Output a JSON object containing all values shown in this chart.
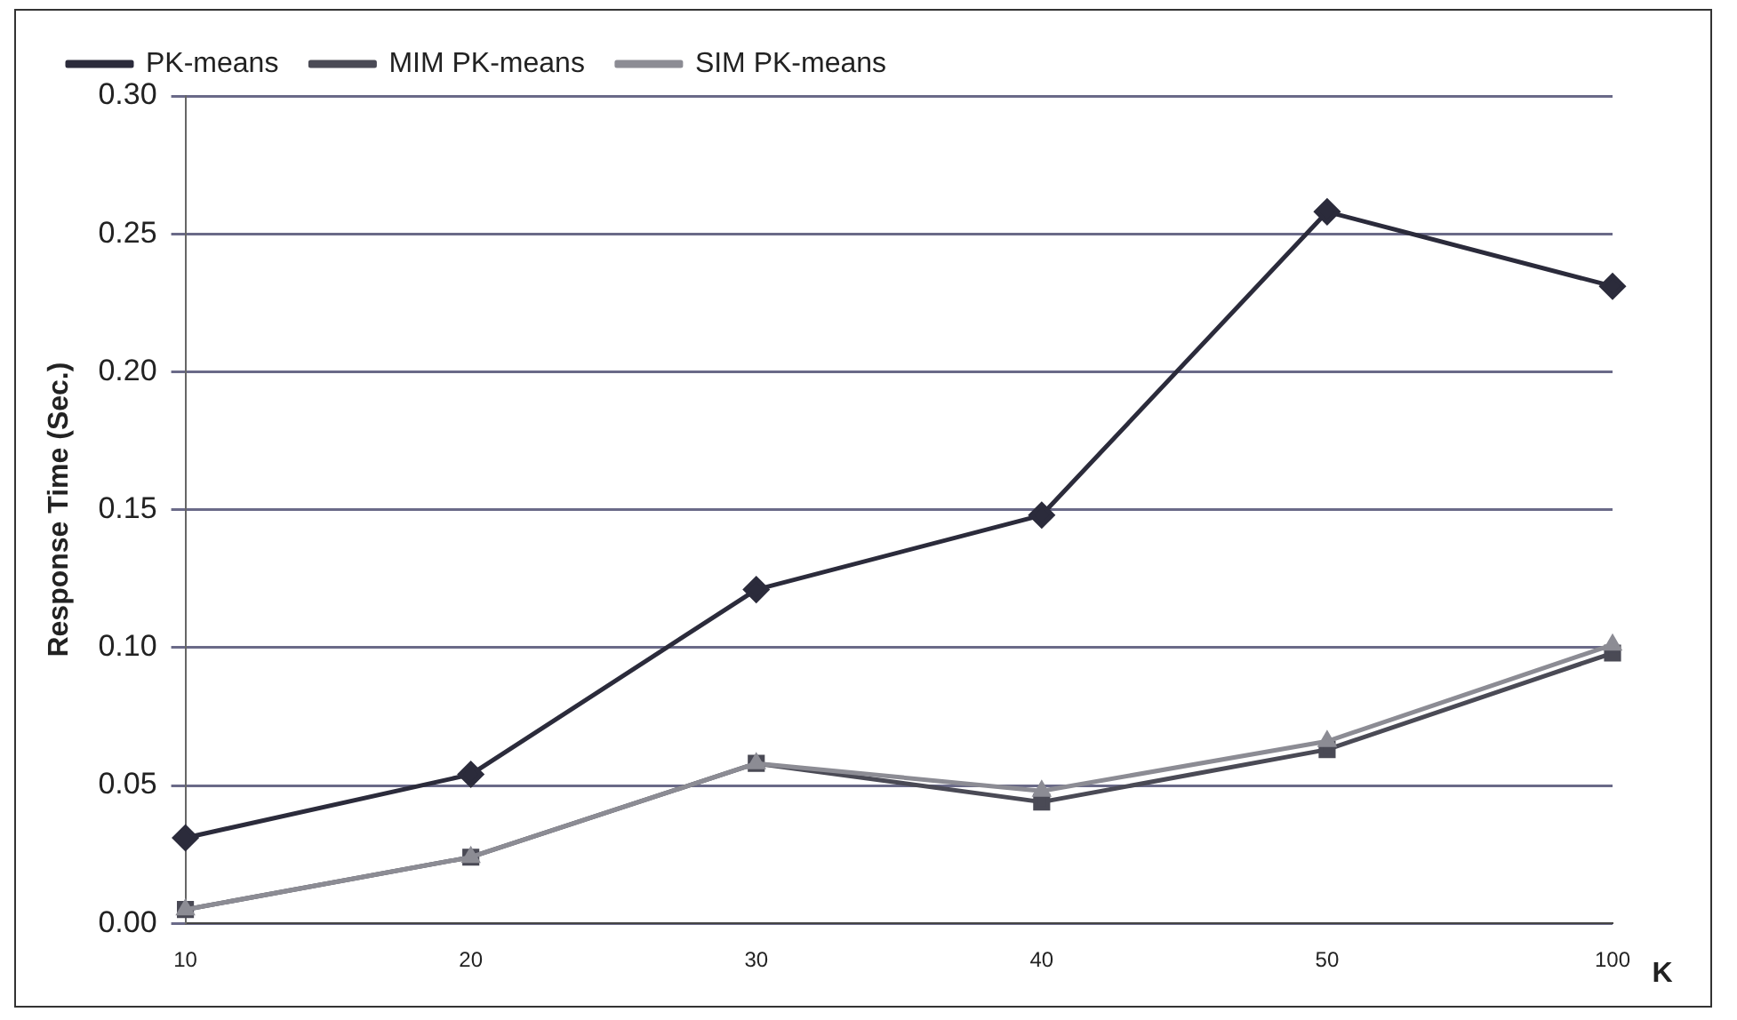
{
  "chart_data": {
    "type": "line",
    "ylabel": "Response Time (Sec.)",
    "xlabel": "K",
    "categories": [
      "10",
      "20",
      "30",
      "40",
      "50",
      "100"
    ],
    "series": [
      {
        "name": "PK-means",
        "color": "#2b2b3b",
        "marker": "diamond",
        "values": [
          0.031,
          0.054,
          0.121,
          0.148,
          0.258,
          0.231
        ]
      },
      {
        "name": "MIM PK-means",
        "color": "#4a4a55",
        "marker": "square",
        "values": [
          0.005,
          0.024,
          0.058,
          0.044,
          0.063,
          0.098
        ]
      },
      {
        "name": "SIM PK-means",
        "color": "#8c8c94",
        "marker": "triangle",
        "values": [
          0.005,
          0.024,
          0.058,
          0.048,
          0.066,
          0.101
        ]
      }
    ],
    "ylim": [
      0,
      0.3
    ],
    "yticks": [
      {
        "value": 0,
        "label": "0.00"
      },
      {
        "value": 0.05,
        "label": "0.05"
      },
      {
        "value": 0.1,
        "label": "0.10"
      },
      {
        "value": 0.15,
        "label": "0.15"
      },
      {
        "value": 0.2,
        "label": "0.20"
      },
      {
        "value": 0.25,
        "label": "0.25"
      },
      {
        "value": 0.3,
        "label": "0.30"
      }
    ],
    "grid": "y",
    "legend": "top left"
  }
}
